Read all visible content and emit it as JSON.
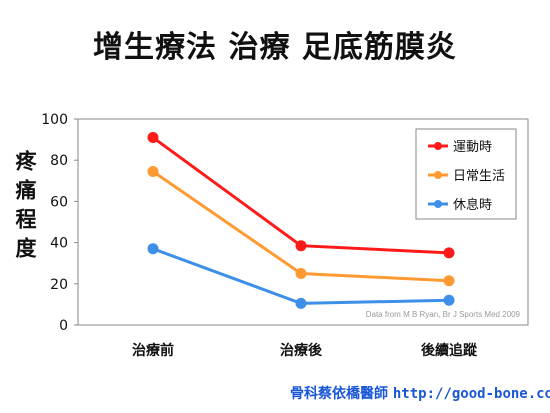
{
  "title": "增生療法 治療 足底筋膜炎",
  "footer": {
    "name": "骨科蔡依橋醫師",
    "site": "http://good-bone.com"
  },
  "chart_data": {
    "type": "line",
    "title": "增生療法 治療 足底筋膜炎",
    "ylabel": "疼痛程度",
    "xlabel": "",
    "categories": [
      "治療前",
      "治療後",
      "後續追蹤"
    ],
    "ylim": [
      0,
      100
    ],
    "yticks": [
      "0",
      "20",
      "40",
      "60",
      "80",
      "100"
    ],
    "grid": false,
    "legend_position": "top-right",
    "source_note": "Data from M B Ryan, Br J Sports Med 2009",
    "series": [
      {
        "name": "運動時",
        "color": "#ff1a1a",
        "values": [
          91,
          38.5,
          35
        ]
      },
      {
        "name": "日常生活",
        "color": "#ff9a33",
        "values": [
          74.5,
          25,
          21.5
        ]
      },
      {
        "name": "休息時",
        "color": "#3d8fe8",
        "values": [
          37,
          10.5,
          12
        ]
      }
    ]
  }
}
